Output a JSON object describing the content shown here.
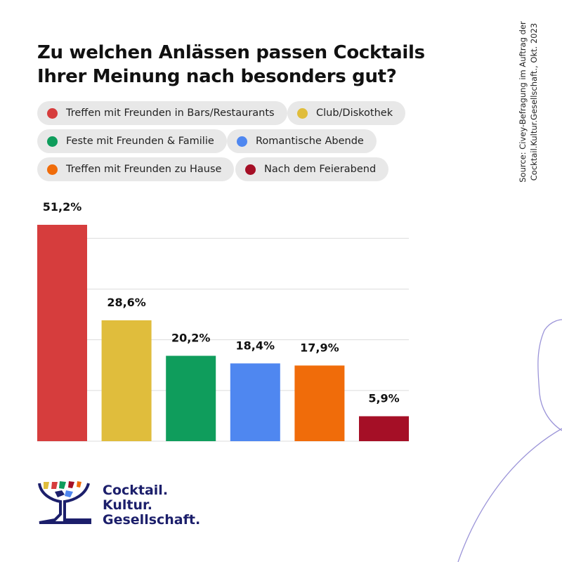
{
  "chart_data": {
    "type": "bar",
    "title": "Zu welchen Anlässen passen Cocktails Ihrer Meinung nach besonders gut?",
    "categories": [
      "Treffen mit Freunden in Bars/Restaurants",
      "Club/Diskothek",
      "Feste mit Freunden & Familie",
      "Romantische Abende",
      "Treffen mit Freunden zu Hause",
      "Nach dem Feierabend"
    ],
    "values": [
      51.2,
      28.6,
      20.2,
      18.4,
      17.9,
      5.9
    ],
    "data_labels": [
      "51,2%",
      "28,6%",
      "20,2%",
      "18,4%",
      "17,9%",
      "5,9%"
    ],
    "colors": [
      "#d63d3d",
      "#e0bd3c",
      "#0f9d5c",
      "#4f87f0",
      "#f06c0a",
      "#a50f26"
    ],
    "unit": "%",
    "ylim": [
      0,
      60
    ],
    "gridlines": [
      12,
      24,
      36,
      48
    ],
    "grid": true,
    "legend_placement": "top",
    "xlabel": "",
    "ylabel": ""
  },
  "source": "Source: Civey-Befragung im Auftrag der Cocktail.Kultur.Gesellschaft., Okt. 2023",
  "logo": {
    "lines": [
      "Cocktail.",
      "Kultur.",
      "Gesellschaft."
    ],
    "color": "#1c1f6b"
  }
}
